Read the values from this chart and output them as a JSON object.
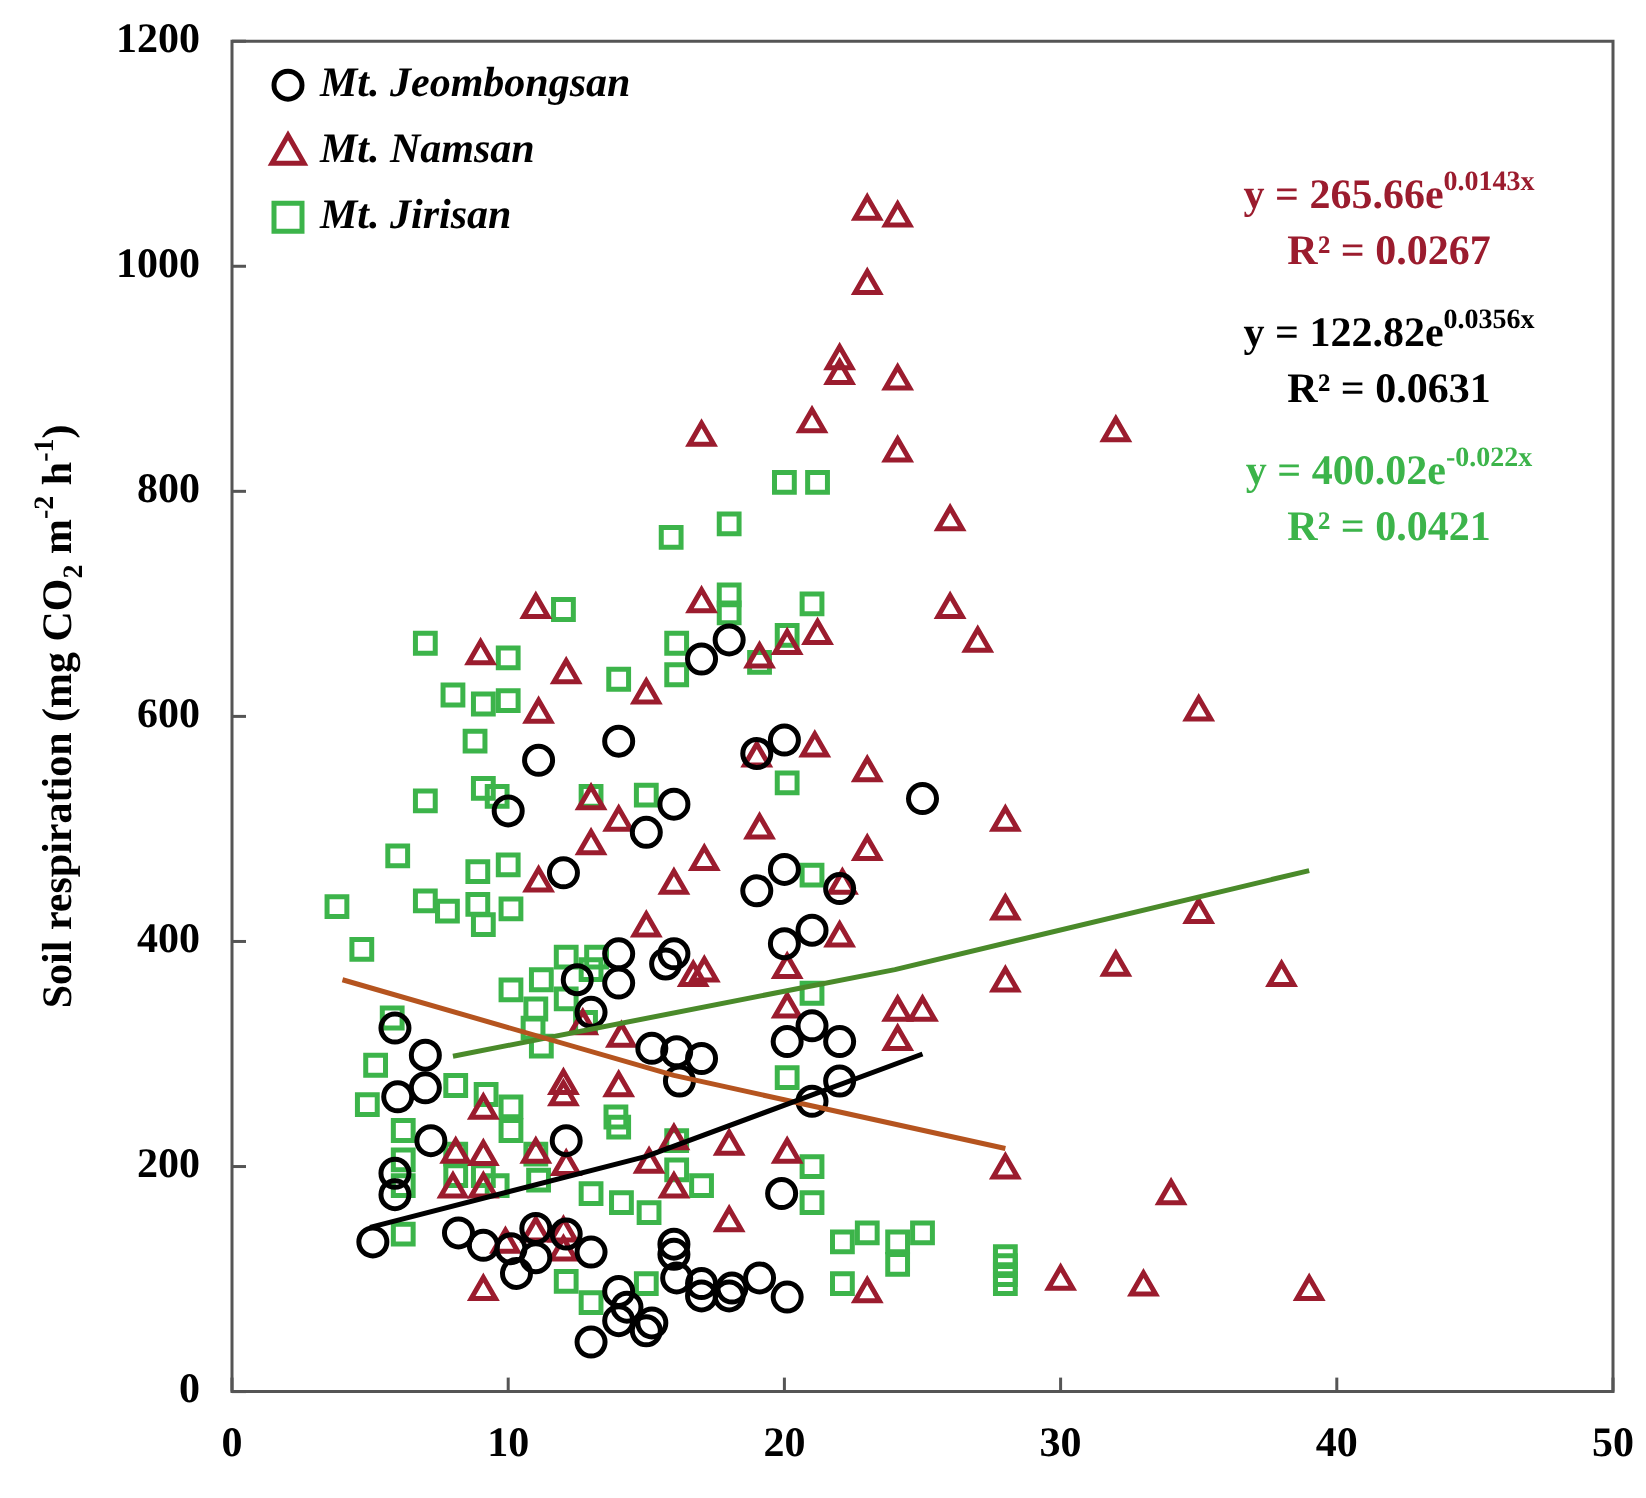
{
  "chart_data": {
    "type": "scatter",
    "ylabel": "Soil respiration (mg CO$_{2}$ m$^{-2}$ h$^{-1}$)",
    "xlim": [
      0,
      50
    ],
    "xticks": [
      0,
      10,
      20,
      30,
      40,
      50
    ],
    "ylim": [
      0,
      1200
    ],
    "yticks": [
      0,
      200,
      400,
      600,
      800,
      1000,
      1200
    ],
    "grid": false,
    "legend": "top left",
    "annotations": [
      "y = 265.66e$^{0.0143x}$",
      "R² = 0.0267",
      "y = 122.82e$^{0.0356x}$",
      "R² = 0.0631",
      "y = 400.02e$^{-0.022x}$",
      "R² = 0.0421"
    ],
    "series": [
      {
        "name": "Mt. Jeombongsan",
        "color": "#000000",
        "marker": "circle",
        "x": [
          14,
          11.1,
          10,
          12,
          15,
          16,
          14,
          16,
          17,
          18,
          20,
          19,
          25,
          20,
          19,
          21,
          20,
          22,
          5.9,
          7,
          7,
          6,
          7.2,
          5.9,
          5.9,
          5.1,
          8.2,
          9.1,
          10.1,
          11,
          10.3,
          11,
          12.1,
          12.1,
          13,
          14,
          13,
          15,
          14,
          13,
          14,
          12.5,
          15.7,
          15.2,
          16.2,
          16,
          16,
          14.3,
          16.1,
          17,
          20.1,
          21,
          22,
          22,
          21,
          19.9,
          16.1,
          17,
          18.1,
          18,
          19.1,
          20.1,
          17,
          15.2
        ],
        "values": [
          578,
          561,
          516,
          461,
          497,
          522,
          389,
          389,
          651,
          668,
          579,
          567,
          527,
          464,
          445,
          410,
          398,
          447,
          323,
          299,
          270,
          262,
          223,
          194,
          175,
          133,
          141,
          130,
          127,
          145,
          105,
          119,
          223,
          140,
          124,
          89,
          44,
          54,
          63,
          337,
          363,
          366,
          380,
          305,
          276,
          131,
          122,
          75,
          302,
          296,
          311,
          325,
          311,
          276,
          258,
          176,
          101,
          96,
          92,
          85,
          101,
          84,
          85,
          61
        ]
      },
      {
        "name": "Mt. Namsan",
        "color": "#9b1c2e",
        "marker": "triangle",
        "x": [
          11,
          9,
          12.1,
          15,
          11.1,
          13,
          14,
          13,
          11.1,
          15,
          16,
          17,
          26,
          26,
          27,
          19.1,
          20.1,
          21.2,
          21.1,
          19,
          23,
          19.1,
          17.1,
          23,
          28,
          28,
          22.1,
          22,
          9.1,
          9.1,
          8.1,
          9.1,
          8,
          9.9,
          11,
          12,
          9.1,
          12,
          12,
          11,
          12.1,
          12,
          14.1,
          14,
          15.1,
          16,
          16,
          12.7,
          16.7,
          17.1,
          20.1,
          20.1,
          24.1,
          25,
          24.1,
          28,
          32,
          18,
          20.1,
          18,
          28,
          23,
          30,
          23,
          24.1,
          23,
          22,
          22,
          24.1,
          17,
          21,
          24.1,
          32,
          35,
          35,
          38,
          34,
          33,
          39
        ],
        "values": [
          695,
          654,
          637,
          619,
          602,
          525,
          506,
          485,
          452,
          412,
          450,
          700,
          773,
          695,
          665,
          651,
          663,
          672,
          572,
          563,
          550,
          499,
          471,
          480,
          506,
          427,
          450,
          403,
          250,
          209,
          211,
          180,
          180,
          131,
          141,
          141,
          89,
          272,
          262,
          211,
          200,
          124,
          314,
          270,
          202,
          223,
          180,
          325,
          368,
          372,
          375,
          340,
          337,
          337,
          311,
          363,
          377,
          218,
          211,
          150,
          197,
          87,
          98,
          1049,
          1043,
          983,
          916,
          903,
          898,
          848,
          860,
          834,
          852,
          604,
          424,
          368,
          174,
          93,
          89
        ]
      },
      {
        "name": "Mt. Jirisan",
        "color": "#3cb44a",
        "marker": "square",
        "x": [
          15.9,
          12,
          7,
          10,
          14,
          16.1,
          16.1,
          8,
          9.1,
          10,
          8.8,
          9.1,
          9.6,
          7,
          13,
          15,
          6,
          3.8,
          7,
          8.9,
          10,
          7.8,
          8.9,
          9.1,
          10.1,
          4.7,
          12.1,
          13.2,
          18,
          20,
          21.2,
          18,
          18,
          21,
          20.1,
          19.1,
          20.1,
          21,
          5.8,
          5.2,
          4.9,
          6.2,
          6.2,
          6.2,
          6.2,
          8.1,
          9.2,
          10.1,
          8.1,
          8.1,
          9.1,
          10.1,
          9.6,
          11,
          11.1,
          10.1,
          11.2,
          12.1,
          13,
          11,
          11.2,
          12.8,
          10.9,
          13,
          14.1,
          15.1,
          15,
          13,
          12.1,
          14,
          16.1,
          16.1,
          13.9,
          21,
          20.1,
          21,
          21,
          22.1,
          23,
          24.1,
          25,
          24.1,
          22.1,
          28,
          28,
          28,
          28,
          17
        ],
        "values": [
          759,
          695,
          665,
          652,
          633,
          665,
          637,
          619,
          611,
          614,
          578,
          536,
          529,
          525,
          529,
          530,
          476,
          431,
          436,
          462,
          468,
          427,
          433,
          415,
          429,
          393,
          386,
          386,
          771,
          808,
          808,
          708,
          692,
          700,
          672,
          648,
          541,
          459,
          332,
          290,
          255,
          232,
          206,
          183,
          140,
          272,
          264,
          253,
          211,
          192,
          192,
          232,
          183,
          211,
          188,
          357,
          366,
          349,
          375,
          340,
          307,
          328,
          323,
          176,
          168,
          159,
          96,
          79,
          98,
          235,
          223,
          197,
          244,
          354,
          279,
          200,
          168,
          133,
          141,
          133,
          141,
          113,
          96,
          120,
          112,
          104,
          96,
          183
        ]
      },
      {
        "type": "line",
        "color": "#000000",
        "marker": "none",
        "x": [
          5,
          15,
          25
        ],
        "values": [
          146,
          209,
          300
        ]
      },
      {
        "type": "line",
        "color": "#b5541f",
        "marker": "none",
        "x": [
          4,
          16,
          28
        ],
        "values": [
          366,
          281,
          216
        ]
      },
      {
        "type": "line",
        "color": "#4a8a2a",
        "marker": "none",
        "x": [
          8,
          24,
          39
        ],
        "values": [
          298,
          375,
          463
        ]
      }
    ]
  }
}
